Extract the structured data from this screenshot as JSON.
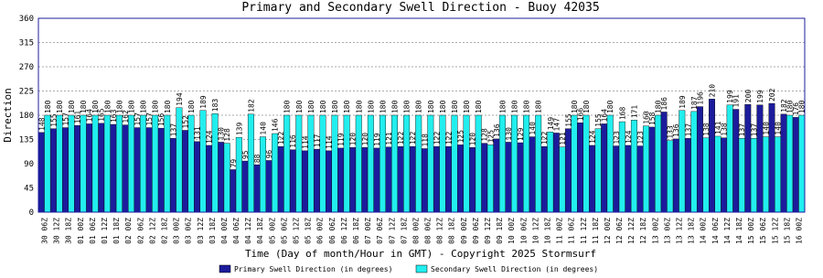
{
  "chart_data": {
    "type": "bar",
    "title": "Primary and Secondary Swell Direction - Buoy 42035",
    "x_label": "Time (Day of month/Hour in GMT) - Copyright 2025 Stormsurf",
    "y_label": "Direction",
    "categories": [
      "30 06Z",
      "30 12Z",
      "30 18Z",
      "01 00Z",
      "01 06Z",
      "01 12Z",
      "01 18Z",
      "02 00Z",
      "02 06Z",
      "02 12Z",
      "02 18Z",
      "03 00Z",
      "03 06Z",
      "03 12Z",
      "03 18Z",
      "04 00Z",
      "04 06Z",
      "04 12Z",
      "04 18Z",
      "05 00Z",
      "05 06Z",
      "05 12Z",
      "05 18Z",
      "06 00Z",
      "06 06Z",
      "06 12Z",
      "06 18Z",
      "07 00Z",
      "07 06Z",
      "07 12Z",
      "07 18Z",
      "08 00Z",
      "08 06Z",
      "08 12Z",
      "08 18Z",
      "09 00Z",
      "09 06Z",
      "09 12Z",
      "09 18Z",
      "10 00Z",
      "10 06Z",
      "10 12Z",
      "10 18Z",
      "11 00Z",
      "11 06Z",
      "11 12Z",
      "11 18Z",
      "12 00Z",
      "12 06Z",
      "12 12Z",
      "12 18Z",
      "13 00Z",
      "13 06Z",
      "13 12Z",
      "13 18Z",
      "14 00Z",
      "14 06Z",
      "14 12Z",
      "14 18Z",
      "15 00Z",
      "15 06Z",
      "15 12Z",
      "15 18Z",
      "16 00Z"
    ],
    "series": [
      {
        "name": "Primary Swell Direction (in degrees)",
        "color": "#1c1c9c",
        "values": [
          148,
          155,
          157,
          161,
          164,
          165,
          163,
          162,
          157,
          157,
          156,
          137,
          152,
          131,
          124,
          130,
          79,
          95,
          88,
          96,
          122,
          116,
          114,
          117,
          114,
          119,
          120,
          120,
          119,
          121,
          122,
          122,
          118,
          122,
          122,
          125,
          120,
          128,
          136,
          130,
          129,
          140,
          122,
          147,
          155,
          166,
          124,
          164,
          123,
          124,
          123,
          158,
          186,
          136,
          137,
          196,
          210,
          138,
          191,
          200,
          199,
          202,
          182,
          176
        ]
      },
      {
        "name": "Secondary Swell Direction (in degrees)",
        "color": "#22eeee",
        "values": [
          180,
          180,
          180,
          180,
          180,
          180,
          180,
          180,
          180,
          180,
          180,
          194,
          180,
          189,
          183,
          128,
          139,
          182,
          140,
          146,
          180,
          180,
          180,
          180,
          180,
          180,
          180,
          180,
          180,
          180,
          180,
          180,
          180,
          180,
          180,
          180,
          180,
          125,
          180,
          180,
          180,
          180,
          149,
          121,
          180,
          180,
          155,
          180,
          168,
          171,
          160,
          180,
          133,
          189,
          187,
          138,
          141,
          199,
          137,
          137,
          140,
          140,
          180,
          180
        ]
      }
    ],
    "ylim": [
      0,
      360
    ],
    "yticks": [
      0,
      45,
      90,
      135,
      180,
      225,
      270,
      315,
      360
    ],
    "grid": true
  }
}
